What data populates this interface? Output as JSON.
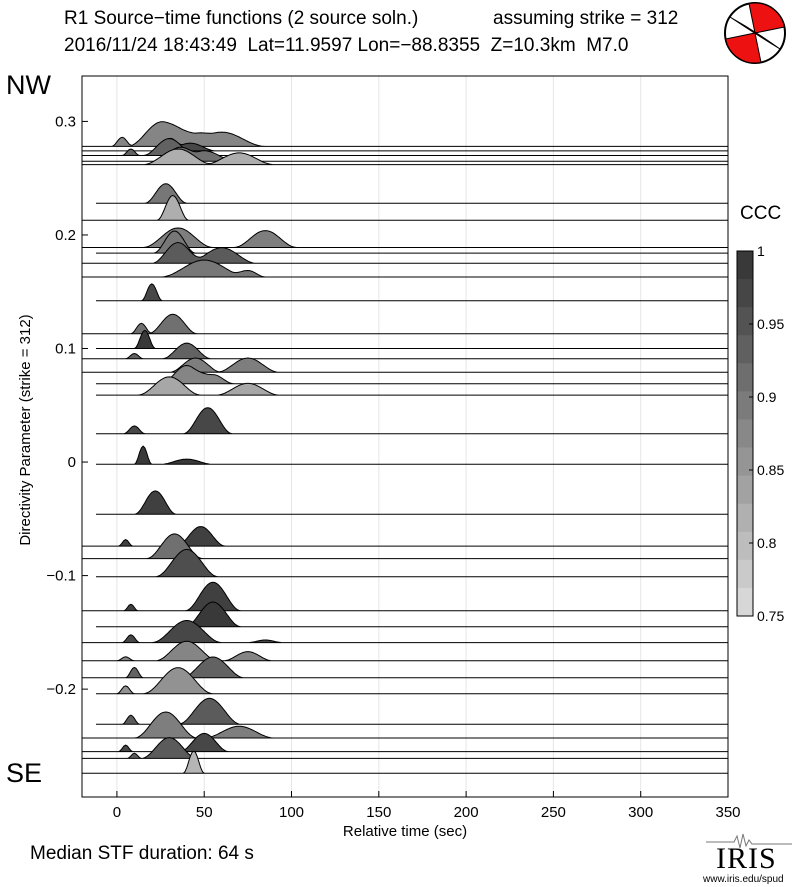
{
  "header": {
    "title": "R1 Source−time functions (2 source soln.)",
    "strike_note": "assuming strike = 312",
    "event_line": "2016/11/24 18:43:49  Lat=11.9597 Lon=−88.8355  Z=10.3km  M7.0"
  },
  "labels": {
    "nw": "NW",
    "se": "SE"
  },
  "footer": {
    "median": "Median STF duration: 64 s",
    "logo": "IRIS",
    "url": "www.iris.edu/spud"
  },
  "colors": {
    "beachball_red": "#ee1111",
    "trace_line": "#000000"
  },
  "chart_data": {
    "type": "area",
    "xlabel": "Relative time (sec)",
    "ylabel": "Directivity Parameter (strike = 312)",
    "xlim": [
      -20,
      350
    ],
    "ylim": [
      -0.295,
      0.34
    ],
    "xticks": [
      0,
      50,
      100,
      150,
      200,
      250,
      300,
      350
    ],
    "yticks": [
      0.3,
      0.2,
      0.1,
      0,
      -0.1,
      -0.2
    ],
    "ytick_labels": [
      "0.3",
      "0.2",
      "0.1",
      "0",
      "−0.1",
      "−0.2"
    ],
    "grid_x": true,
    "colorbar": {
      "title": "CCC",
      "range": [
        0.75,
        1
      ],
      "ticks": [
        1,
        0.95,
        0.9,
        0.85,
        0.8,
        0.75
      ],
      "tick_labels": [
        "1",
        "0.95",
        "0.9",
        "0.85",
        "0.8",
        "0.75"
      ]
    },
    "traces": [
      {
        "d": 0.278,
        "start": -20,
        "ccc": 0.88,
        "pulses": [
          [
            3,
            6,
            14
          ],
          [
            26,
            20,
            38
          ],
          [
            42,
            15,
            14
          ],
          [
            60,
            25,
            22
          ]
        ]
      },
      {
        "d": 0.274,
        "start": -20,
        "ccc": 0.97,
        "pulses": [
          [
            30,
            8,
            18
          ],
          [
            42,
            15,
            12
          ]
        ]
      },
      {
        "d": 0.27,
        "start": -20,
        "ccc": 0.93,
        "pulses": [
          [
            8,
            5,
            10
          ],
          [
            30,
            15,
            26
          ]
        ]
      },
      {
        "d": 0.265,
        "start": -20,
        "ccc": 0.91,
        "pulses": [
          [
            35,
            12,
            20
          ],
          [
            50,
            18,
            16
          ]
        ]
      },
      {
        "d": 0.262,
        "start": -20,
        "ccc": 0.82,
        "pulses": [
          [
            35,
            20,
            24
          ],
          [
            70,
            20,
            18
          ]
        ]
      },
      {
        "d": 0.228,
        "start": -12,
        "ccc": 0.9,
        "pulses": [
          [
            28,
            12,
            30
          ]
        ]
      },
      {
        "d": 0.213,
        "start": -20,
        "ccc": 0.82,
        "pulses": [
          [
            32,
            9,
            38
          ]
        ]
      },
      {
        "d": 0.189,
        "start": -20,
        "ccc": 0.89,
        "pulses": [
          [
            35,
            20,
            30
          ],
          [
            85,
            18,
            26
          ]
        ]
      },
      {
        "d": 0.184,
        "start": -12,
        "ccc": 0.9,
        "pulses": [
          [
            33,
            12,
            34
          ]
        ]
      },
      {
        "d": 0.175,
        "start": -20,
        "ccc": 0.94,
        "pulses": [
          [
            35,
            15,
            32
          ],
          [
            60,
            20,
            24
          ]
        ]
      },
      {
        "d": 0.163,
        "start": -20,
        "ccc": 0.9,
        "pulses": [
          [
            50,
            25,
            26
          ],
          [
            75,
            10,
            10
          ]
        ]
      },
      {
        "d": 0.142,
        "start": -12,
        "ccc": 0.97,
        "pulses": [
          [
            20,
            6,
            26
          ]
        ]
      },
      {
        "d": 0.113,
        "start": -20,
        "ccc": 0.91,
        "pulses": [
          [
            14,
            6,
            16
          ],
          [
            32,
            14,
            30
          ]
        ]
      },
      {
        "d": 0.1,
        "start": -12,
        "ccc": 0.99,
        "pulses": [
          [
            16,
            6,
            28
          ]
        ]
      },
      {
        "d": 0.091,
        "start": -20,
        "ccc": 0.93,
        "pulses": [
          [
            10,
            5,
            8
          ],
          [
            40,
            14,
            24
          ]
        ]
      },
      {
        "d": 0.079,
        "start": -20,
        "ccc": 0.89,
        "pulses": [
          [
            45,
            15,
            22
          ],
          [
            75,
            18,
            22
          ]
        ]
      },
      {
        "d": 0.069,
        "start": -12,
        "ccc": 0.88,
        "pulses": [
          [
            40,
            15,
            28
          ],
          [
            55,
            12,
            14
          ]
        ]
      },
      {
        "d": 0.059,
        "start": -12,
        "ccc": 0.83,
        "pulses": [
          [
            30,
            18,
            28
          ],
          [
            75,
            18,
            18
          ]
        ]
      },
      {
        "d": 0.025,
        "start": -12,
        "ccc": 0.97,
        "pulses": [
          [
            10,
            6,
            12
          ],
          [
            52,
            14,
            40
          ]
        ]
      },
      {
        "d": -0.002,
        "start": -12,
        "ccc": 0.99,
        "pulses": [
          [
            15,
            5,
            28
          ],
          [
            40,
            15,
            8
          ]
        ]
      },
      {
        "d": -0.046,
        "start": -12,
        "ccc": 0.98,
        "pulses": [
          [
            22,
            12,
            36
          ]
        ]
      },
      {
        "d": -0.074,
        "start": -20,
        "ccc": 0.98,
        "pulses": [
          [
            5,
            4,
            10
          ],
          [
            48,
            14,
            30
          ]
        ]
      },
      {
        "d": -0.085,
        "start": -20,
        "ccc": 0.91,
        "pulses": [
          [
            33,
            16,
            38
          ]
        ]
      },
      {
        "d": -0.101,
        "start": -12,
        "ccc": 0.96,
        "pulses": [
          [
            40,
            18,
            42
          ]
        ]
      },
      {
        "d": -0.131,
        "start": -20,
        "ccc": 0.98,
        "pulses": [
          [
            8,
            4,
            10
          ],
          [
            55,
            16,
            44
          ]
        ]
      },
      {
        "d": -0.145,
        "start": -12,
        "ccc": 0.99,
        "pulses": [
          [
            55,
            16,
            38
          ]
        ]
      },
      {
        "d": -0.159,
        "start": -20,
        "ccc": 0.97,
        "pulses": [
          [
            8,
            5,
            12
          ],
          [
            40,
            20,
            34
          ],
          [
            85,
            10,
            4
          ]
        ]
      },
      {
        "d": -0.175,
        "start": -20,
        "ccc": 0.88,
        "pulses": [
          [
            5,
            5,
            6
          ],
          [
            40,
            18,
            30
          ],
          [
            75,
            14,
            14
          ]
        ]
      },
      {
        "d": -0.19,
        "start": -20,
        "ccc": 0.93,
        "pulses": [
          [
            10,
            5,
            16
          ],
          [
            55,
            18,
            32
          ]
        ]
      },
      {
        "d": -0.204,
        "start": -12,
        "ccc": 0.86,
        "pulses": [
          [
            5,
            5,
            12
          ],
          [
            35,
            20,
            40
          ]
        ]
      },
      {
        "d": -0.231,
        "start": -12,
        "ccc": 0.94,
        "pulses": [
          [
            8,
            5,
            14
          ],
          [
            53,
            18,
            40
          ]
        ]
      },
      {
        "d": -0.243,
        "start": -20,
        "ccc": 0.89,
        "pulses": [
          [
            28,
            18,
            40
          ],
          [
            70,
            20,
            18
          ]
        ]
      },
      {
        "d": -0.255,
        "start": -20,
        "ccc": 0.97,
        "pulses": [
          [
            5,
            4,
            10
          ],
          [
            50,
            14,
            28
          ]
        ]
      },
      {
        "d": -0.261,
        "start": -20,
        "ccc": 0.94,
        "pulses": [
          [
            10,
            4,
            8
          ],
          [
            30,
            16,
            32
          ]
        ]
      },
      {
        "d": -0.274,
        "start": -20,
        "ccc": 0.81,
        "pulses": [
          [
            44,
            6,
            34
          ]
        ]
      }
    ]
  }
}
